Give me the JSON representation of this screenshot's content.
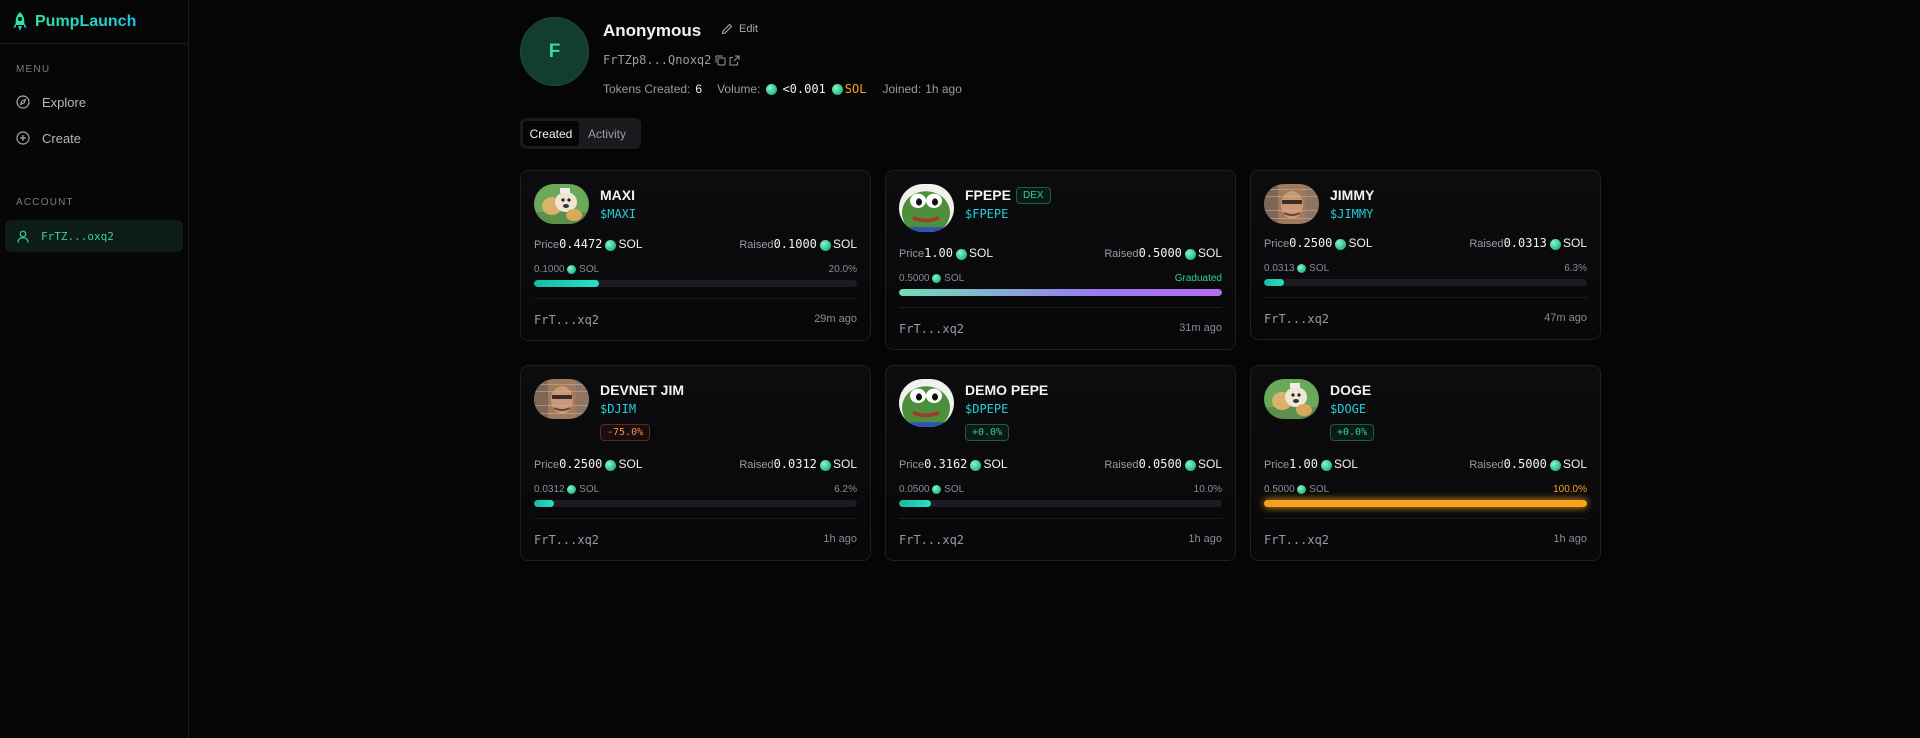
{
  "brand": {
    "name": "PumpLaunch",
    "accent": "#2ee6a6"
  },
  "sidebar": {
    "menu_label": "MENU",
    "items": [
      {
        "label": "Explore",
        "icon": "compass-icon"
      },
      {
        "label": "Create",
        "icon": "plus-circle-icon"
      }
    ],
    "account_label": "ACCOUNT",
    "account": {
      "label": "FrTZ...oxq2",
      "icon": "user-icon"
    }
  },
  "profile": {
    "avatar_letter": "F",
    "name": "Anonymous",
    "edit_label": "Edit",
    "address": "FrTZp8...Qnoxq2",
    "tokens_created_label": "Tokens Created:",
    "tokens_created": "6",
    "volume_label": "Volume:",
    "volume_value": "<0.001",
    "volume_unit": "SOL",
    "joined_label": "Joined:",
    "joined_value": "1h ago"
  },
  "tabs": [
    {
      "label": "Created",
      "active": true
    },
    {
      "label": "Activity",
      "active": false
    }
  ],
  "labels": {
    "price": "Price",
    "raised": "Raised",
    "sol": "SOL"
  },
  "cards": [
    {
      "name": "MAXI",
      "ticker": "$MAXI",
      "image": "doge-image",
      "price": "0.4472",
      "raised": "0.1000",
      "progress_amount": "0.1000",
      "progress_label": "20.0%",
      "progress": 0.2,
      "creator": "FrT...xq2",
      "time": "29m ago"
    },
    {
      "name": "FPEPE",
      "badge": "DEX",
      "ticker": "$FPEPE",
      "image": "pepe-image",
      "price": "1.00",
      "raised": "0.5000",
      "progress_amount": "0.5000",
      "progress_label": "Graduated",
      "progress": 1.0,
      "creator": "FrT...xq2",
      "time": "31m ago"
    },
    {
      "name": "JIMMY",
      "ticker": "$JIMMY",
      "image": "jimmy-image",
      "price": "0.2500",
      "raised": "0.0313",
      "progress_amount": "0.0313",
      "progress_label": "6.3%",
      "progress": 0.063,
      "creator": "FrT...xq2",
      "time": "47m ago"
    },
    {
      "name": "DEVNET JIM",
      "ticker": "$DJIM",
      "change": "-75.0%",
      "image": "jimmy-image",
      "price": "0.2500",
      "raised": "0.0312",
      "progress_amount": "0.0312",
      "progress_label": "6.2%",
      "progress": 0.062,
      "creator": "FrT...xq2",
      "time": "1h ago"
    },
    {
      "name": "DEMO PEPE",
      "ticker": "$DPEPE",
      "change": "+0.0%",
      "image": "pepe-image",
      "price": "0.3162",
      "raised": "0.0500",
      "progress_amount": "0.0500",
      "progress_label": "10.0%",
      "progress": 0.1,
      "creator": "FrT...xq2",
      "time": "1h ago"
    },
    {
      "name": "DOGE",
      "ticker": "$DOGE",
      "change": "+0.0%",
      "image": "doge-image",
      "price": "1.00",
      "raised": "0.5000",
      "progress_amount": "0.5000",
      "progress_label": "100.0%",
      "progress": 1.0,
      "creator": "FrT...xq2",
      "time": "1h ago"
    }
  ]
}
